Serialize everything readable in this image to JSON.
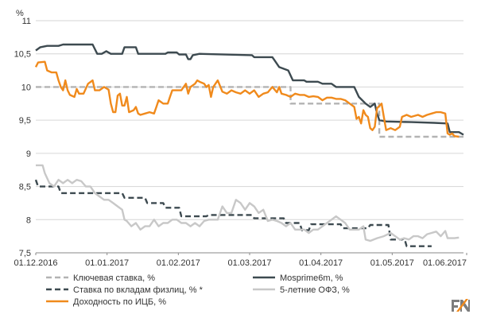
{
  "chart_data": {
    "type": "line",
    "unit_label": "%",
    "ylim": [
      7.5,
      11
    ],
    "y_ticks": [
      "7,5",
      "8",
      "8,5",
      "9",
      "9,5",
      "10",
      "10,5",
      "11"
    ],
    "x_ticks": [
      "01.12.2016",
      "01.01.2017",
      "01.02.2017",
      "01.03.2017",
      "01.04.2017",
      "01.05.2017",
      "01.06.2017"
    ],
    "grid": "horizontal",
    "legend_position": "bottom",
    "series": [
      {
        "name": "Ключевая ставка, %",
        "color": "#b3b3b3",
        "dash": true,
        "points": [
          [
            0,
            10
          ],
          [
            112,
            10
          ],
          [
            112,
            9.75
          ],
          [
            151,
            9.75
          ],
          [
            151,
            9.25
          ],
          [
            188,
            9.25
          ]
        ]
      },
      {
        "name": "Mosprime6m, %",
        "color": "#3d4a50",
        "dash": false,
        "points": [
          [
            0,
            10.55
          ],
          [
            2,
            10.6
          ],
          [
            5,
            10.62
          ],
          [
            10,
            10.62
          ],
          [
            12,
            10.64
          ],
          [
            25,
            10.64
          ],
          [
            27,
            10.5
          ],
          [
            29,
            10.5
          ],
          [
            31,
            10.54
          ],
          [
            33,
            10.5
          ],
          [
            38,
            10.5
          ],
          [
            39,
            10.6
          ],
          [
            44,
            10.6
          ],
          [
            45,
            10.5
          ],
          [
            57,
            10.5
          ],
          [
            58,
            10.52
          ],
          [
            62,
            10.52
          ],
          [
            63,
            10.49
          ],
          [
            66,
            10.49
          ],
          [
            67,
            10.42
          ],
          [
            68,
            10.42
          ],
          [
            69,
            10.48
          ],
          [
            72,
            10.5
          ],
          [
            95,
            10.48
          ],
          [
            96,
            10.45
          ],
          [
            104,
            10.45
          ],
          [
            105,
            10.4
          ],
          [
            107,
            10.3
          ],
          [
            111,
            10.25
          ],
          [
            113,
            10.1
          ],
          [
            118,
            10.1
          ],
          [
            119,
            10.08
          ],
          [
            124,
            10.08
          ],
          [
            126,
            10.05
          ],
          [
            130,
            10.05
          ],
          [
            132,
            10.0
          ],
          [
            140,
            10.0
          ],
          [
            142,
            9.85
          ],
          [
            145,
            9.75
          ],
          [
            147,
            9.7
          ],
          [
            149,
            9.75
          ],
          [
            150,
            9.6
          ],
          [
            151,
            9.5
          ],
          [
            154,
            9.48
          ],
          [
            165,
            9.47
          ],
          [
            175,
            9.46
          ],
          [
            181,
            9.45
          ],
          [
            182,
            9.32
          ],
          [
            186,
            9.32
          ],
          [
            188,
            9.28
          ]
        ]
      },
      {
        "name": "Ставка по вкладам физлиц, % *",
        "color": "#3d4a50",
        "dash": true,
        "points": [
          [
            0,
            8.6
          ],
          [
            1,
            8.5
          ],
          [
            10,
            8.5
          ],
          [
            11,
            8.4
          ],
          [
            38,
            8.4
          ],
          [
            39,
            8.33
          ],
          [
            48,
            8.33
          ],
          [
            49,
            8.25
          ],
          [
            56,
            8.25
          ],
          [
            57,
            8.18
          ],
          [
            63,
            8.18
          ],
          [
            64,
            8.05
          ],
          [
            75,
            8.05
          ],
          [
            76,
            8.07
          ],
          [
            95,
            8.07
          ],
          [
            96,
            8.02
          ],
          [
            109,
            8.02
          ],
          [
            110,
            7.95
          ],
          [
            116,
            7.95
          ],
          [
            117,
            7.84
          ],
          [
            120,
            7.84
          ],
          [
            121,
            7.93
          ],
          [
            134,
            7.93
          ],
          [
            135,
            7.87
          ],
          [
            146,
            7.87
          ],
          [
            147,
            7.92
          ],
          [
            155,
            7.92
          ],
          [
            156,
            7.7
          ],
          [
            161,
            7.7
          ],
          [
            162,
            7.72
          ],
          [
            163,
            7.6
          ],
          [
            174,
            7.6
          ]
        ]
      },
      {
        "name": "5-летние ОФЗ, %",
        "color": "#c8c8c8",
        "dash": false,
        "points": [
          [
            0,
            8.82
          ],
          [
            3,
            8.82
          ],
          [
            4,
            8.7
          ],
          [
            6,
            8.55
          ],
          [
            8,
            8.5
          ],
          [
            10,
            8.6
          ],
          [
            12,
            8.55
          ],
          [
            14,
            8.6
          ],
          [
            16,
            8.55
          ],
          [
            18,
            8.6
          ],
          [
            20,
            8.58
          ],
          [
            22,
            8.5
          ],
          [
            24,
            8.5
          ],
          [
            26,
            8.4
          ],
          [
            28,
            8.35
          ],
          [
            30,
            8.3
          ],
          [
            32,
            8.3
          ],
          [
            34,
            8.25
          ],
          [
            36,
            8.2
          ],
          [
            38,
            8.15
          ],
          [
            39,
            8.0
          ],
          [
            40,
            7.98
          ],
          [
            42,
            7.9
          ],
          [
            44,
            7.95
          ],
          [
            46,
            7.85
          ],
          [
            48,
            7.9
          ],
          [
            50,
            7.9
          ],
          [
            52,
            8.0
          ],
          [
            54,
            7.9
          ],
          [
            56,
            7.95
          ],
          [
            58,
            7.95
          ],
          [
            60,
            8.0
          ],
          [
            62,
            8.0
          ],
          [
            64,
            7.95
          ],
          [
            66,
            7.95
          ],
          [
            68,
            7.9
          ],
          [
            70,
            7.95
          ],
          [
            72,
            7.9
          ],
          [
            74,
            7.98
          ],
          [
            76,
            8.0
          ],
          [
            78,
            8.0
          ],
          [
            80,
            8.0
          ],
          [
            82,
            8.2
          ],
          [
            84,
            8.1
          ],
          [
            86,
            8.1
          ],
          [
            88,
            8.3
          ],
          [
            90,
            8.25
          ],
          [
            92,
            8.15
          ],
          [
            94,
            8.25
          ],
          [
            96,
            8.2
          ],
          [
            98,
            8.1
          ],
          [
            100,
            8.15
          ],
          [
            102,
            7.98
          ],
          [
            104,
            8.0
          ],
          [
            106,
            7.98
          ],
          [
            108,
            7.95
          ],
          [
            110,
            7.9
          ],
          [
            112,
            7.95
          ],
          [
            114,
            7.85
          ],
          [
            116,
            7.85
          ],
          [
            118,
            7.85
          ],
          [
            120,
            7.8
          ],
          [
            122,
            7.85
          ],
          [
            124,
            7.85
          ],
          [
            126,
            7.9
          ],
          [
            128,
            7.95
          ],
          [
            130,
            8.0
          ],
          [
            132,
            8.05
          ],
          [
            134,
            8.0
          ],
          [
            136,
            7.95
          ],
          [
            138,
            7.85
          ],
          [
            140,
            7.85
          ],
          [
            142,
            7.85
          ],
          [
            144,
            7.9
          ],
          [
            145,
            7.7
          ],
          [
            147,
            7.68
          ],
          [
            150,
            7.72
          ],
          [
            153,
            7.75
          ],
          [
            156,
            7.8
          ],
          [
            158,
            7.75
          ],
          [
            160,
            7.7
          ],
          [
            162,
            7.72
          ],
          [
            164,
            7.7
          ],
          [
            166,
            7.75
          ],
          [
            168,
            7.75
          ],
          [
            170,
            7.72
          ],
          [
            172,
            7.78
          ],
          [
            174,
            7.8
          ],
          [
            176,
            7.82
          ],
          [
            178,
            7.75
          ],
          [
            180,
            7.83
          ],
          [
            181,
            7.72
          ],
          [
            184,
            7.72
          ],
          [
            186,
            7.73
          ]
        ]
      },
      {
        "name": "Доходность по ИЦБ, %",
        "color": "#f08a1c",
        "dash": false,
        "points": [
          [
            0,
            10.3
          ],
          [
            1,
            10.37
          ],
          [
            4,
            10.38
          ],
          [
            5,
            10.25
          ],
          [
            7,
            10.22
          ],
          [
            9,
            10.22
          ],
          [
            10,
            10.1
          ],
          [
            11,
            10.0
          ],
          [
            12,
            9.95
          ],
          [
            13,
            10.1
          ],
          [
            14,
            9.95
          ],
          [
            15,
            9.88
          ],
          [
            17,
            9.85
          ],
          [
            18,
            9.97
          ],
          [
            19,
            9.9
          ],
          [
            21,
            9.9
          ],
          [
            23,
            10.05
          ],
          [
            25,
            10.1
          ],
          [
            26,
            9.95
          ],
          [
            28,
            9.95
          ],
          [
            30,
            10.0
          ],
          [
            32,
            9.96
          ],
          [
            33,
            9.75
          ],
          [
            34,
            9.62
          ],
          [
            35,
            9.62
          ],
          [
            36,
            9.87
          ],
          [
            37,
            9.9
          ],
          [
            38,
            9.72
          ],
          [
            39,
            9.72
          ],
          [
            40,
            9.85
          ],
          [
            41,
            9.62
          ],
          [
            43,
            9.65
          ],
          [
            44,
            9.7
          ],
          [
            45,
            9.6
          ],
          [
            46,
            9.58
          ],
          [
            48,
            9.6
          ],
          [
            50,
            9.62
          ],
          [
            52,
            9.6
          ],
          [
            53,
            9.7
          ],
          [
            54,
            9.8
          ],
          [
            56,
            9.75
          ],
          [
            58,
            9.75
          ],
          [
            59,
            9.85
          ],
          [
            60,
            9.95
          ],
          [
            62,
            9.95
          ],
          [
            64,
            9.95
          ],
          [
            66,
            10.05
          ],
          [
            67,
            9.9
          ],
          [
            68,
            10.0
          ],
          [
            70,
            10.05
          ],
          [
            71,
            10.1
          ],
          [
            72,
            10.08
          ],
          [
            74,
            10.05
          ],
          [
            75,
            10.0
          ],
          [
            76,
            10.03
          ],
          [
            77,
            9.85
          ],
          [
            78,
            10.0
          ],
          [
            80,
            10.1
          ],
          [
            82,
            9.93
          ],
          [
            84,
            9.9
          ],
          [
            86,
            9.95
          ],
          [
            88,
            9.92
          ],
          [
            90,
            9.9
          ],
          [
            92,
            9.95
          ],
          [
            94,
            9.9
          ],
          [
            96,
            9.95
          ],
          [
            98,
            9.85
          ],
          [
            100,
            9.9
          ],
          [
            102,
            9.92
          ],
          [
            104,
            10.0
          ],
          [
            106,
            9.92
          ],
          [
            107,
            10.0
          ],
          [
            108,
            9.9
          ],
          [
            110,
            9.88
          ],
          [
            112,
            9.85
          ],
          [
            114,
            9.9
          ],
          [
            116,
            9.88
          ],
          [
            118,
            9.88
          ],
          [
            120,
            9.85
          ],
          [
            122,
            9.86
          ],
          [
            124,
            9.85
          ],
          [
            126,
            9.8
          ],
          [
            128,
            9.84
          ],
          [
            130,
            9.84
          ],
          [
            132,
            9.82
          ],
          [
            134,
            9.82
          ],
          [
            136,
            9.8
          ],
          [
            138,
            9.75
          ],
          [
            140,
            9.7
          ],
          [
            141,
            9.52
          ],
          [
            142,
            9.55
          ],
          [
            143,
            9.45
          ],
          [
            144,
            9.65
          ],
          [
            145,
            9.58
          ],
          [
            146,
            9.55
          ],
          [
            147,
            9.38
          ],
          [
            148,
            9.35
          ],
          [
            149,
            9.4
          ],
          [
            150,
            9.68
          ],
          [
            152,
            9.75
          ],
          [
            153,
            9.55
          ],
          [
            154,
            9.35
          ],
          [
            156,
            9.38
          ],
          [
            158,
            9.35
          ],
          [
            160,
            9.4
          ],
          [
            161,
            9.55
          ],
          [
            163,
            9.58
          ],
          [
            165,
            9.55
          ],
          [
            168,
            9.58
          ],
          [
            170,
            9.55
          ],
          [
            172,
            9.58
          ],
          [
            174,
            9.6
          ],
          [
            176,
            9.62
          ],
          [
            178,
            9.62
          ],
          [
            180,
            9.6
          ],
          [
            181,
            9.3
          ],
          [
            182,
            9.28
          ],
          [
            183,
            9.3
          ],
          [
            184,
            9.26
          ],
          [
            186,
            9.25
          ]
        ]
      }
    ],
    "legend": [
      "Ключевая ставка, %",
      "Mosprime6m, %",
      "Ставка по вкладам физлиц, % *",
      "5-летние ОФЗ, %",
      "Доходность по ИЦБ, %"
    ]
  },
  "colors": {
    "grid": "#d6d6d6",
    "axis": "#8a8a8a",
    "text": "#333333",
    "logo_dark": "#7d7d7d",
    "logo_accent": "#f08a1c"
  },
  "icons": {
    "logo": "brand-logo-icon"
  }
}
